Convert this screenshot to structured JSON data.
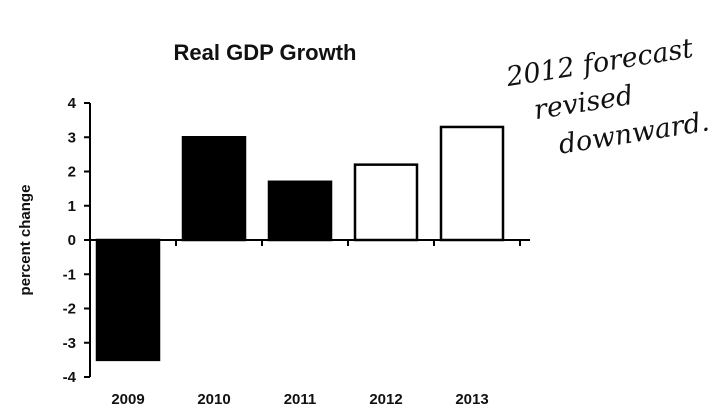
{
  "chart_data": {
    "type": "bar",
    "title": "Real GDP Growth",
    "xlabel": "",
    "ylabel": "percent change",
    "categories": [
      "2009",
      "2010",
      "2011",
      "2012",
      "2013"
    ],
    "values": [
      -3.5,
      3.0,
      1.7,
      2.2,
      3.3
    ],
    "bar_styles": [
      "filled",
      "filled",
      "filled",
      "outline",
      "outline"
    ],
    "ylim": [
      -4,
      4
    ],
    "yticks": [
      4,
      3,
      2,
      1,
      0,
      -1,
      -2,
      -3,
      -4
    ],
    "ytick_labels": [
      "4",
      "3",
      "2",
      "1",
      "0",
      "-1",
      "-2",
      "-3",
      "-4"
    ],
    "grid": false,
    "legend": "none",
    "colors": {
      "fill": "#000000",
      "outline": "#000000",
      "outline_fill": "#ffffff"
    },
    "annotation": {
      "lines": [
        "2012 forecast",
        "revised",
        "downward."
      ],
      "style": "handwritten"
    }
  }
}
